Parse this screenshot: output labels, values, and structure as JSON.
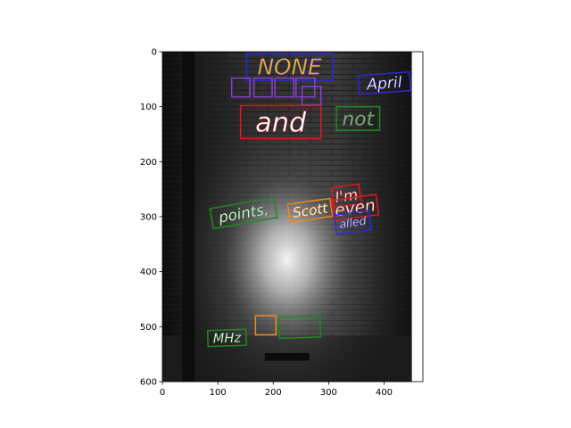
{
  "chart_data": {
    "type": "image_with_annotations",
    "title": "",
    "xlabel": "",
    "ylabel": "",
    "xlim": [
      0,
      470
    ],
    "ylim": [
      600,
      0
    ],
    "image_extent": [
      0,
      450,
      600,
      0
    ],
    "x_ticks": [
      0,
      100,
      200,
      300,
      400
    ],
    "y_ticks": [
      0,
      100,
      200,
      300,
      400,
      500,
      600
    ],
    "grid": false,
    "legend": "none",
    "annotations": [
      {
        "text": "NONE",
        "x0": 152,
        "y0": 3,
        "x1": 307,
        "y1": 52,
        "color": "#2b2bd6",
        "text_color": "#f2b21a",
        "angle": 0
      },
      {
        "text": "",
        "x0": 125,
        "y0": 48,
        "x1": 158,
        "y1": 82,
        "color": "#8b3fd6",
        "text_color": "#9a9a9a",
        "angle": 0
      },
      {
        "text": "",
        "x0": 165,
        "y0": 48,
        "x1": 198,
        "y1": 82,
        "color": "#8b3fd6",
        "text_color": "#9a9a9a",
        "angle": 0
      },
      {
        "text": "",
        "x0": 203,
        "y0": 48,
        "x1": 237,
        "y1": 82,
        "color": "#8b3fd6",
        "text_color": "#9a9a9a",
        "angle": 0
      },
      {
        "text": "",
        "x0": 241,
        "y0": 48,
        "x1": 275,
        "y1": 82,
        "color": "#8b3fd6",
        "text_color": "#9a9a9a",
        "angle": 0
      },
      {
        "text": "",
        "x0": 252,
        "y0": 63,
        "x1": 286,
        "y1": 97,
        "color": "#8b3fd6",
        "text_color": "#9a9a9a",
        "angle": 0
      },
      {
        "text": "April",
        "x0": 354,
        "y0": 40,
        "x1": 447,
        "y1": 74,
        "color": "#2b2bd6",
        "text_color": "#ffffff",
        "angle": -4
      },
      {
        "text": "and",
        "x0": 141,
        "y0": 98,
        "x1": 286,
        "y1": 158,
        "color": "#e0191e",
        "text_color": "#ffffff",
        "angle": 0
      },
      {
        "text": "not",
        "x0": 314,
        "y0": 100,
        "x1": 392,
        "y1": 143,
        "color": "#1f8a1f",
        "text_color": "#9a9a9a",
        "angle": 0
      },
      {
        "text": "points,",
        "x0": 88,
        "y0": 275,
        "x1": 205,
        "y1": 312,
        "color": "#1f8a1f",
        "text_color": "#ffffff",
        "angle": -10
      },
      {
        "text": "Scott",
        "x0": 228,
        "y0": 272,
        "x1": 305,
        "y1": 305,
        "color": "#f08c1a",
        "text_color": "#ffffff",
        "angle": -8
      },
      {
        "text": "I'm",
        "x0": 307,
        "y0": 244,
        "x1": 357,
        "y1": 280,
        "color": "#e0191e",
        "text_color": "#ffffff",
        "angle": -8
      },
      {
        "text": "even",
        "x0": 307,
        "y0": 265,
        "x1": 388,
        "y1": 302,
        "color": "#e0191e",
        "text_color": "#ffffff",
        "angle": -8
      },
      {
        "text": "alled",
        "x0": 312,
        "y0": 293,
        "x1": 375,
        "y1": 328,
        "color": "#2b2bd6",
        "text_color": "#ffffff",
        "angle": -8
      },
      {
        "text": "",
        "x0": 168,
        "y0": 480,
        "x1": 205,
        "y1": 515,
        "color": "#f08c1a",
        "text_color": "#ffffff",
        "angle": 0
      },
      {
        "text": "",
        "x0": 211,
        "y0": 482,
        "x1": 285,
        "y1": 520,
        "color": "#1f8a1f",
        "text_color": "#dddddd",
        "angle": -2
      },
      {
        "text": "MHz",
        "x0": 82,
        "y0": 506,
        "x1": 151,
        "y1": 535,
        "color": "#1f8a1f",
        "text_color": "#ffffff",
        "angle": -2
      }
    ]
  }
}
